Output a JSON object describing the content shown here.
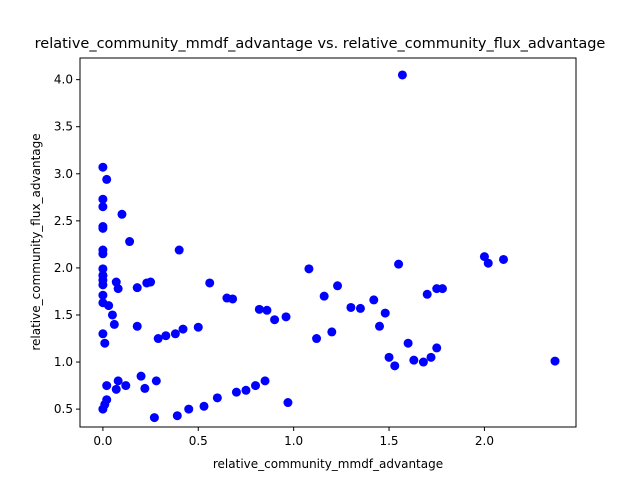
{
  "chart_data": {
    "type": "scatter",
    "title": "relative_community_mmdf_advantage vs. relative_community_flux_advantage",
    "xlabel": "relative_community_mmdf_advantage",
    "ylabel": "relative_community_flux_advantage",
    "xlim": [
      -0.12,
      2.48
    ],
    "ylim": [
      0.31,
      4.23
    ],
    "xticks": [
      0.0,
      0.5,
      1.0,
      1.5,
      2.0
    ],
    "xtick_labels": [
      "0.0",
      "0.5",
      "1.0",
      "1.5",
      "2.0"
    ],
    "yticks": [
      0.5,
      1.0,
      1.5,
      2.0,
      2.5,
      3.0,
      3.5,
      4.0
    ],
    "ytick_labels": [
      "0.5",
      "1.0",
      "1.5",
      "2.0",
      "2.5",
      "3.0",
      "3.5",
      "4.0"
    ],
    "grid": false,
    "marker_color": "#0000ff",
    "series": [
      {
        "x": [
          1.57,
          0.0,
          0.02,
          0.0,
          0.0,
          0.0,
          0.0,
          0.1,
          0.0,
          0.0,
          0.14,
          0.4,
          0.0,
          0.0,
          0.0,
          0.0,
          2.0,
          2.1,
          2.02,
          1.55,
          1.08,
          0.0,
          0.0,
          0.23,
          0.25,
          0.56,
          0.18,
          0.0,
          0.07,
          0.08,
          0.65,
          0.68,
          1.16,
          1.23,
          1.3,
          1.35,
          1.42,
          1.7,
          1.75,
          1.78,
          0.82,
          0.86,
          0.96,
          0.9,
          2.37,
          1.6,
          1.63,
          1.72,
          1.75,
          1.68,
          1.53,
          1.48,
          0.97,
          0.27,
          0.39,
          0.45,
          0.53,
          0.07,
          0.02,
          0.0,
          0.01,
          0.02,
          0.08,
          0.12,
          0.2,
          0.5,
          0.6,
          0.7,
          0.75,
          0.8,
          0.85,
          1.5,
          1.45,
          1.2,
          1.12,
          0.42,
          0.38,
          0.33,
          0.29,
          0.22,
          0.28,
          0.18,
          0.03,
          0.05,
          0.06,
          0.0,
          0.01
        ],
        "y": [
          4.05,
          3.07,
          2.94,
          2.73,
          2.65,
          2.44,
          2.42,
          2.57,
          2.19,
          2.15,
          2.28,
          2.19,
          1.99,
          1.92,
          1.87,
          1.82,
          2.12,
          2.09,
          2.05,
          2.04,
          1.99,
          1.71,
          1.63,
          1.84,
          1.85,
          1.84,
          1.79,
          1.92,
          1.85,
          1.78,
          1.68,
          1.67,
          1.7,
          1.81,
          1.58,
          1.57,
          1.66,
          1.72,
          1.78,
          1.78,
          1.56,
          1.55,
          1.48,
          1.45,
          1.01,
          1.2,
          1.02,
          1.05,
          1.15,
          1.0,
          0.96,
          1.52,
          0.57,
          0.41,
          0.43,
          0.5,
          0.53,
          0.71,
          0.75,
          0.5,
          0.55,
          0.6,
          0.8,
          0.75,
          0.85,
          1.37,
          0.62,
          0.68,
          0.7,
          0.75,
          0.8,
          1.05,
          1.38,
          1.32,
          1.25,
          1.35,
          1.3,
          1.28,
          1.25,
          0.72,
          0.8,
          1.38,
          1.6,
          1.5,
          1.4,
          1.3,
          1.2
        ]
      }
    ]
  }
}
